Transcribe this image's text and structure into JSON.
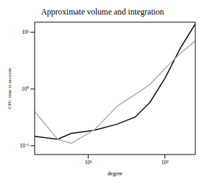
{
  "chart_data": {
    "type": "line",
    "title": "Approximate volume and integration",
    "x_label": "degree",
    "y_label": "CPU time in seconds",
    "log": true,
    "x": [
      2,
      4,
      6,
      12,
      24,
      41,
      64,
      101,
      158,
      250
    ],
    "series": [
      {
        "color": "#000000",
        "values": [
          0.146,
          0.13,
          0.165,
          0.187,
          0.24,
          0.32,
          0.58,
          1.57,
          5.1,
          14
        ]
      },
      {
        "color": "#aaaaaa",
        "values": [
          0.4,
          0.13,
          0.11,
          0.19,
          0.5,
          0.8,
          1.2,
          2.3,
          4.2,
          7.0
        ]
      }
    ],
    "xlim": [
      2,
      250
    ],
    "ylim": [
      0.07,
      15
    ],
    "xticks": [
      {
        "value": 10,
        "label": "10¹"
      },
      {
        "value": 100,
        "label": "10²"
      }
    ],
    "yticks": [
      {
        "value": 0.1,
        "label": "10⁻¹"
      },
      {
        "value": 1,
        "label": "10⁰"
      },
      {
        "value": 10,
        "label": "10¹"
      }
    ]
  }
}
